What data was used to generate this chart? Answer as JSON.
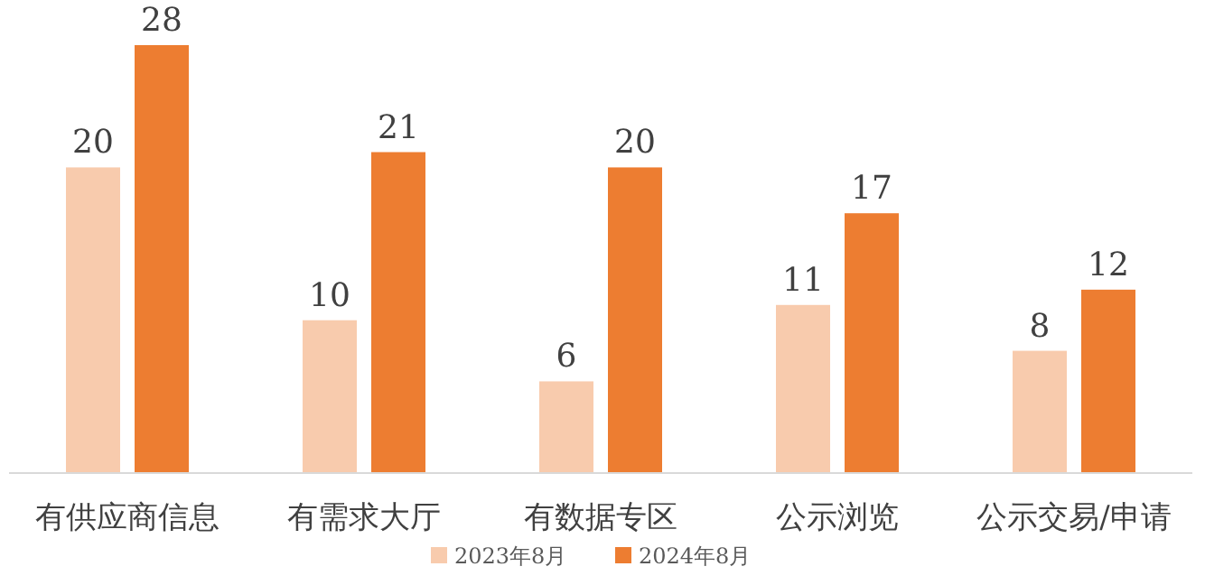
{
  "chart_data": {
    "type": "bar",
    "categories": [
      "有供应商信息",
      "有需求大厅",
      "有数据专区",
      "公示浏览",
      "公示交易/申请"
    ],
    "series": [
      {
        "name": "2023年8月",
        "color": "#f8cbad",
        "values": [
          20,
          10,
          6,
          11,
          8
        ]
      },
      {
        "name": "2024年8月",
        "color": "#ed7d31",
        "values": [
          28,
          21,
          20,
          17,
          12
        ]
      }
    ],
    "data_labels": true,
    "legend": "bottom"
  }
}
